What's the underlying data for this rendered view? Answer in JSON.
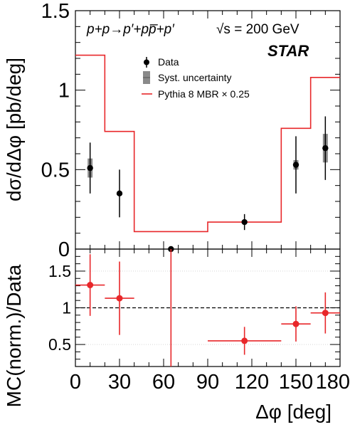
{
  "chart_data": [
    {
      "type": "line",
      "panel": "top",
      "process": "p+p→p′+pp̅+p′",
      "energy": "√s = 200 GeV",
      "experiment": "STAR",
      "ylabel": "dσ/dΔφ [pb/deg]",
      "xlim": [
        0,
        180
      ],
      "ylim": [
        0,
        1.5
      ],
      "yticks": [
        0,
        0.5,
        1,
        1.5
      ],
      "ytick_labels": [
        "0",
        "0.5",
        "1",
        "1.5"
      ],
      "legend": {
        "placement": "top-right",
        "entries": [
          "Data",
          "Syst. uncertainty",
          "Pythia 8 MBR × 0.25"
        ]
      },
      "series": [
        {
          "name": "Data",
          "kind": "points",
          "color": "#000000",
          "points": [
            {
              "x": 10,
              "y": 0.51,
              "err_up": 0.16,
              "err_down": 0.16,
              "syst_up": 0.06,
              "syst_down": 0.06
            },
            {
              "x": 30,
              "y": 0.35,
              "err_up": 0.15,
              "err_down": 0.15,
              "syst_up": 0.0,
              "syst_down": 0.0
            },
            {
              "x": 65,
              "y": 0.0,
              "err_up": 0.0,
              "err_down": 0.0,
              "syst_up": 0.0,
              "syst_down": 0.0
            },
            {
              "x": 115,
              "y": 0.17,
              "err_up": 0.05,
              "err_down": 0.05,
              "syst_up": 0.01,
              "syst_down": 0.01
            },
            {
              "x": 150,
              "y": 0.53,
              "err_up": 0.18,
              "err_down": 0.18,
              "syst_up": 0.03,
              "syst_down": 0.03
            },
            {
              "x": 170,
              "y": 0.635,
              "err_up": 0.2,
              "err_down": 0.2,
              "syst_up": 0.09,
              "syst_down": 0.09
            }
          ]
        },
        {
          "name": "Pythia 8 MBR × 0.25",
          "kind": "histogram",
          "color": "#e8272a",
          "bin_edges": [
            0,
            20,
            40,
            90,
            140,
            160,
            180
          ],
          "values": [
            1.22,
            0.74,
            0.11,
            0.17,
            0.76,
            1.08
          ]
        }
      ]
    },
    {
      "type": "scatter",
      "panel": "bottom",
      "xlabel": "Δφ [deg]",
      "ylabel": "MC(norm.)/Data",
      "xlim": [
        0,
        180
      ],
      "ylim": [
        0.2,
        1.8
      ],
      "xticks": [
        0,
        30,
        60,
        90,
        120,
        150,
        180
      ],
      "xtick_labels": [
        "0",
        "30",
        "60",
        "90",
        "120",
        "150",
        "180"
      ],
      "yticks": [
        0.5,
        1,
        1.5
      ],
      "ytick_labels": [
        "0.5",
        "1",
        "1.5"
      ],
      "reference_line": 1,
      "series": [
        {
          "name": "MC(norm.)/Data",
          "color": "#e8272a",
          "points": [
            {
              "x": 10,
              "x_low": 0,
              "x_high": 20,
              "y": 1.31,
              "err_up": 0.42,
              "err_down": 0.42
            },
            {
              "x": 30,
              "x_low": 20,
              "x_high": 40,
              "y": 1.13,
              "err_up": 0.5,
              "err_down": 0.5
            },
            {
              "x": 65,
              "x_low": 65,
              "x_high": 65,
              "y": 1.8,
              "err_up": 0.0,
              "err_down": 1.6
            },
            {
              "x": 115,
              "x_low": 90,
              "x_high": 140,
              "y": 0.55,
              "err_up": 0.19,
              "err_down": 0.19
            },
            {
              "x": 150,
              "x_low": 140,
              "x_high": 160,
              "y": 0.78,
              "err_up": 0.24,
              "err_down": 0.24
            },
            {
              "x": 170,
              "x_low": 160,
              "x_high": 180,
              "y": 0.93,
              "err_up": 0.28,
              "err_down": 0.28
            }
          ]
        }
      ]
    }
  ]
}
